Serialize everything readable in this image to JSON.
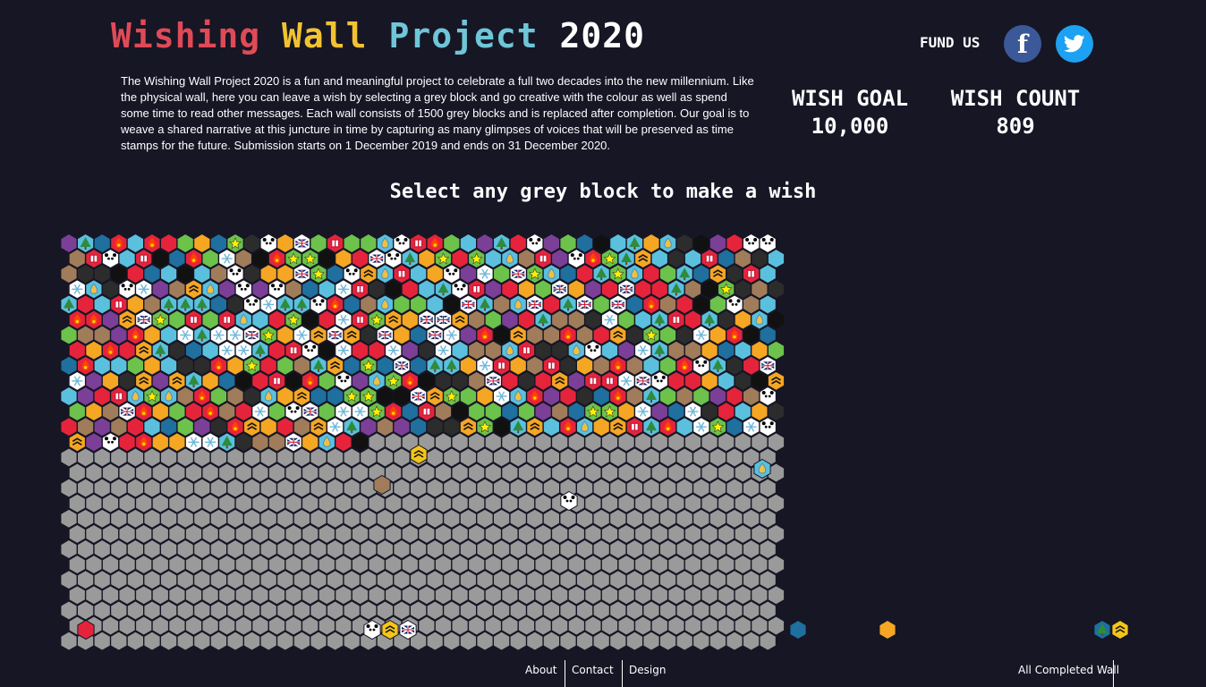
{
  "header": {
    "title_parts": [
      {
        "text": "Wishing",
        "color": "#e04a57"
      },
      {
        "text": " ",
        "color": "#ffffff"
      },
      {
        "text": "Wall",
        "color": "#f2c230"
      },
      {
        "text": " ",
        "color": "#ffffff"
      },
      {
        "text": "Project",
        "color": "#6ec6d8"
      },
      {
        "text": " 2020",
        "color": "#ffffff"
      }
    ],
    "fund_label": "FUND US",
    "facebook_glyph": "f",
    "twitter_icon": "twitter-bird-icon",
    "facebook_icon": "facebook-icon"
  },
  "intro": "The Wishing Wall Project 2020 is a fun and meaningful project to celebrate a full two decades into the new millennium. Like the physical wall, here you can leave a wish by selecting a grey block and go creative with the colour as well as spend some time to read other messages.  Each wall consists of 1500 grey blocks and is replaced after completion. Our goal is to weave a shared narrative at this juncture in time by capturing as many glimpses of voices that will be preserved as time stamps for the future. Submission starts on 1 December 2019 and ends on 31 December 2020.",
  "stats": {
    "goal_label": "WISH GOAL",
    "goal_value": "10,000",
    "count_label": "WISH COUNT",
    "count_value": "809"
  },
  "prompt": "Select any grey block to make a wish",
  "wall": {
    "grey_color": "#9a9a9a",
    "palette": [
      "#e5243b",
      "#f5a623",
      "#6cc24a",
      "#5bc0de",
      "#1f6f9f",
      "#7b3f98",
      "#a07c5a",
      "#111111",
      "#2c2c2c"
    ],
    "icon_kinds": [
      "star",
      "snowflake",
      "tree",
      "panda",
      "flag",
      "chevron",
      "drop",
      "flame",
      "gift"
    ],
    "wished_color_count": 809,
    "stray_wishes": [
      "tan",
      "panda",
      "drop",
      "yellow-chevron",
      "red",
      "panda",
      "yellow-chevron",
      "flag",
      "blue",
      "tree",
      "yellow-chevron",
      "orange"
    ]
  },
  "footer": {
    "about": "About",
    "contact": "Contact",
    "design": "Design",
    "completed": "All Completed Wall"
  }
}
